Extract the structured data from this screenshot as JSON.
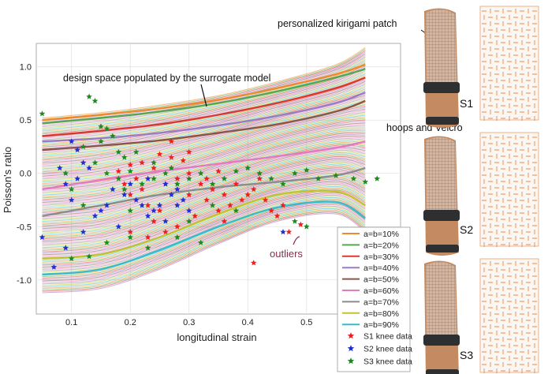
{
  "chart_data": {
    "type": "line",
    "xlabel": "longitudinal strain",
    "ylabel": "Poisson's ratio",
    "xlim": [
      0.04,
      0.66
    ],
    "ylim": [
      -1.32,
      1.22
    ],
    "x_ticks": [
      0.1,
      0.2,
      0.3,
      0.4,
      0.5
    ],
    "y_ticks": [
      1.0,
      0.5,
      0.0,
      -0.5,
      -1.0
    ],
    "x_tick_labels": [
      "0.1",
      "0.2",
      "0.3",
      "0.4",
      "0.5"
    ],
    "y_tick_labels": [
      "1.0",
      "0.5",
      "0.0",
      "-0.5",
      "-1.0"
    ],
    "grid": true,
    "legend_position": "bottom-right",
    "annotations": {
      "design_space": "design space populated by the surrogate model",
      "outliers": "outliers",
      "patch": "personalized kirigami patch",
      "hoops": "hoops and Velcro"
    },
    "panel_labels": [
      "S1",
      "S2",
      "S3"
    ],
    "series": [
      {
        "name": "a=b=10%",
        "color": "#ee8a2c",
        "x": [
          0.05,
          0.15,
          0.25,
          0.35,
          0.45,
          0.55,
          0.6
        ],
        "y": [
          0.5,
          0.55,
          0.61,
          0.69,
          0.8,
          0.93,
          1.02
        ]
      },
      {
        "name": "a=b=20%",
        "color": "#55a84f",
        "x": [
          0.05,
          0.15,
          0.25,
          0.35,
          0.45,
          0.55,
          0.6
        ],
        "y": [
          0.47,
          0.52,
          0.58,
          0.66,
          0.77,
          0.9,
          0.98
        ]
      },
      {
        "name": "a=b=30%",
        "color": "#d83a33",
        "x": [
          0.05,
          0.15,
          0.25,
          0.35,
          0.45,
          0.55,
          0.6
        ],
        "y": [
          0.35,
          0.4,
          0.46,
          0.55,
          0.66,
          0.8,
          0.9
        ]
      },
      {
        "name": "a=b=40%",
        "color": "#9b7cc4",
        "x": [
          0.05,
          0.15,
          0.25,
          0.35,
          0.45,
          0.55,
          0.6
        ],
        "y": [
          0.3,
          0.33,
          0.38,
          0.45,
          0.54,
          0.66,
          0.76
        ]
      },
      {
        "name": "a=b=50%",
        "color": "#8a564a",
        "x": [
          0.05,
          0.15,
          0.25,
          0.35,
          0.45,
          0.55,
          0.6
        ],
        "y": [
          0.22,
          0.26,
          0.31,
          0.38,
          0.46,
          0.58,
          0.68
        ]
      },
      {
        "name": "a=b=60%",
        "color": "#e37ac0",
        "x": [
          0.05,
          0.15,
          0.25,
          0.35,
          0.45,
          0.55,
          0.6
        ],
        "y": [
          -0.15,
          -0.06,
          0.02,
          0.09,
          0.16,
          0.24,
          0.3
        ]
      },
      {
        "name": "a=b=70%",
        "color": "#8c8c8c",
        "x": [
          0.05,
          0.15,
          0.25,
          0.35,
          0.45,
          0.55,
          0.6
        ],
        "y": [
          -0.4,
          -0.3,
          -0.2,
          -0.13,
          -0.08,
          -0.02,
          0.05
        ]
      },
      {
        "name": "a=b=80%",
        "color": "#c3c32f",
        "x": [
          0.05,
          0.15,
          0.25,
          0.35,
          0.45,
          0.55,
          0.6
        ],
        "y": [
          -0.8,
          -0.76,
          -0.6,
          -0.38,
          -0.2,
          -0.17,
          -0.3
        ]
      },
      {
        "name": "a=b=90%",
        "color": "#37bccd",
        "x": [
          0.05,
          0.15,
          0.25,
          0.35,
          0.45,
          0.55,
          0.6
        ],
        "y": [
          -0.95,
          -0.9,
          -0.72,
          -0.5,
          -0.32,
          -0.27,
          -0.42
        ]
      }
    ],
    "knee_data": [
      {
        "name": "S1 knee data",
        "color": "#ee1f1f",
        "points": [
          [
            0.18,
            0.02
          ],
          [
            0.19,
            -0.1
          ],
          [
            0.2,
            -0.2
          ],
          [
            0.22,
            -0.15
          ],
          [
            0.23,
            -0.3
          ],
          [
            0.25,
            -0.35
          ],
          [
            0.26,
            -0.1
          ],
          [
            0.27,
            0.15
          ],
          [
            0.28,
            -0.05
          ],
          [
            0.29,
            0.12
          ],
          [
            0.3,
            -0.2
          ],
          [
            0.31,
            -0.4
          ],
          [
            0.32,
            -0.1
          ],
          [
            0.33,
            -0.25
          ],
          [
            0.34,
            -0.15
          ],
          [
            0.35,
            -0.35
          ],
          [
            0.36,
            -0.2
          ],
          [
            0.37,
            -0.3
          ],
          [
            0.38,
            -0.1
          ],
          [
            0.39,
            -0.25
          ],
          [
            0.4,
            -0.2
          ],
          [
            0.41,
            -0.15
          ],
          [
            0.42,
            -0.05
          ],
          [
            0.43,
            -0.25
          ],
          [
            0.44,
            -0.35
          ],
          [
            0.45,
            -0.4
          ],
          [
            0.46,
            -0.3
          ],
          [
            0.21,
            -0.05
          ],
          [
            0.24,
            0.05
          ],
          [
            0.2,
            -0.55
          ],
          [
            0.23,
            -0.6
          ],
          [
            0.26,
            -0.55
          ],
          [
            0.28,
            -0.5
          ],
          [
            0.22,
            0.1
          ],
          [
            0.3,
            0.0
          ],
          [
            0.33,
            -0.05
          ],
          [
            0.35,
            0.02
          ],
          [
            0.27,
            0.3
          ],
          [
            0.2,
            0.08
          ],
          [
            0.24,
            -0.45
          ],
          [
            0.47,
            -0.55
          ],
          [
            0.49,
            -0.48
          ],
          [
            0.41,
            -0.84
          ],
          [
            0.3,
            0.2
          ],
          [
            0.25,
            0.18
          ],
          [
            0.36,
            -0.45
          ]
        ]
      },
      {
        "name": "S2 knee data",
        "color": "#1f2fd6",
        "points": [
          [
            0.05,
            -0.6
          ],
          [
            0.07,
            -0.88
          ],
          [
            0.09,
            -0.7
          ],
          [
            0.1,
            0.3
          ],
          [
            0.11,
            0.22
          ],
          [
            0.12,
            0.1
          ],
          [
            0.13,
            0.05
          ],
          [
            0.09,
            -0.1
          ],
          [
            0.1,
            -0.25
          ],
          [
            0.12,
            -0.55
          ],
          [
            0.14,
            -0.4
          ],
          [
            0.16,
            -0.3
          ],
          [
            0.17,
            -0.15
          ],
          [
            0.19,
            -0.2
          ],
          [
            0.21,
            -0.25
          ],
          [
            0.22,
            -0.3
          ],
          [
            0.23,
            -0.4
          ],
          [
            0.24,
            -0.35
          ],
          [
            0.25,
            -0.3
          ],
          [
            0.26,
            -0.45
          ],
          [
            0.27,
            -0.2
          ],
          [
            0.28,
            -0.15
          ],
          [
            0.29,
            -0.25
          ],
          [
            0.3,
            -0.35
          ],
          [
            0.2,
            -0.1
          ],
          [
            0.18,
            -0.5
          ],
          [
            0.15,
            -0.35
          ],
          [
            0.23,
            -0.05
          ],
          [
            0.26,
            -0.1
          ],
          [
            0.28,
            -0.3
          ],
          [
            0.46,
            -0.55
          ],
          [
            0.08,
            0.05
          ],
          [
            0.11,
            -0.05
          ]
        ]
      },
      {
        "name": "S3 knee data",
        "color": "#1c8a1c",
        "points": [
          [
            0.05,
            0.56
          ],
          [
            0.13,
            0.72
          ],
          [
            0.14,
            0.68
          ],
          [
            0.15,
            0.44
          ],
          [
            0.16,
            0.42
          ],
          [
            0.17,
            0.35
          ],
          [
            0.18,
            0.2
          ],
          [
            0.19,
            0.15
          ],
          [
            0.15,
            0.3
          ],
          [
            0.12,
            0.25
          ],
          [
            0.14,
            0.1
          ],
          [
            0.16,
            0.0
          ],
          [
            0.18,
            -0.05
          ],
          [
            0.2,
            0.02
          ],
          [
            0.22,
            -0.1
          ],
          [
            0.24,
            -0.05
          ],
          [
            0.26,
            0.0
          ],
          [
            0.28,
            -0.1
          ],
          [
            0.3,
            -0.05
          ],
          [
            0.32,
            0.0
          ],
          [
            0.34,
            -0.1
          ],
          [
            0.36,
            -0.05
          ],
          [
            0.38,
            0.02
          ],
          [
            0.4,
            0.05
          ],
          [
            0.42,
            0.0
          ],
          [
            0.44,
            -0.05
          ],
          [
            0.46,
            -0.1
          ],
          [
            0.48,
            0.0
          ],
          [
            0.5,
            0.03
          ],
          [
            0.52,
            -0.05
          ],
          [
            0.55,
            -0.02
          ],
          [
            0.58,
            -0.05
          ],
          [
            0.6,
            -0.08
          ],
          [
            0.62,
            -0.05
          ],
          [
            0.1,
            -0.8
          ],
          [
            0.13,
            -0.78
          ],
          [
            0.16,
            -0.65
          ],
          [
            0.2,
            -0.6
          ],
          [
            0.23,
            -0.7
          ],
          [
            0.28,
            -0.6
          ],
          [
            0.32,
            -0.65
          ],
          [
            0.34,
            -0.3
          ],
          [
            0.48,
            -0.45
          ],
          [
            0.5,
            -0.5
          ],
          [
            0.2,
            -0.35
          ],
          [
            0.24,
            0.1
          ],
          [
            0.27,
            0.05
          ],
          [
            0.12,
            -0.3
          ],
          [
            0.1,
            -0.15
          ],
          [
            0.09,
            0.0
          ],
          [
            0.21,
            0.2
          ],
          [
            0.19,
            -0.15
          ],
          [
            0.3,
            -0.45
          ],
          [
            0.38,
            -0.35
          ]
        ]
      }
    ]
  }
}
